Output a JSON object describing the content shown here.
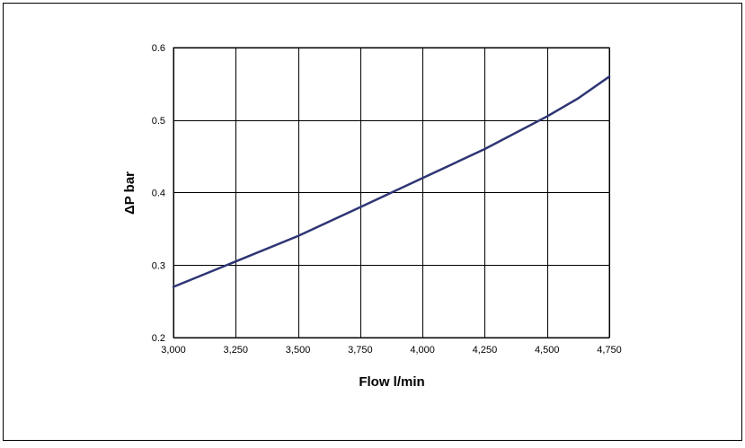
{
  "chart_data": {
    "type": "line",
    "xlabel": "Flow l/min",
    "ylabel": "ΔP bar",
    "xlim": [
      3000,
      4750
    ],
    "ylim": [
      0.2,
      0.6
    ],
    "x_ticks": [
      3000,
      3250,
      3500,
      3750,
      4000,
      4250,
      4500,
      4750
    ],
    "x_tick_labels": [
      "3,000",
      "3,250",
      "3,500",
      "3,750",
      "4,000",
      "4,250",
      "4,500",
      "4,750"
    ],
    "y_ticks": [
      0.2,
      0.3,
      0.4,
      0.5,
      0.6
    ],
    "y_tick_labels": [
      "0.2",
      "0.3",
      "0.4",
      "0.5",
      "0.6"
    ],
    "grid": true,
    "legend": "none",
    "series": [
      {
        "color": "#2e3574",
        "x": [
          3000,
          3250,
          3500,
          3750,
          4000,
          4250,
          4500,
          4625,
          4750
        ],
        "y": [
          0.27,
          0.305,
          0.34,
          0.38,
          0.42,
          0.46,
          0.505,
          0.53,
          0.56
        ]
      }
    ]
  }
}
